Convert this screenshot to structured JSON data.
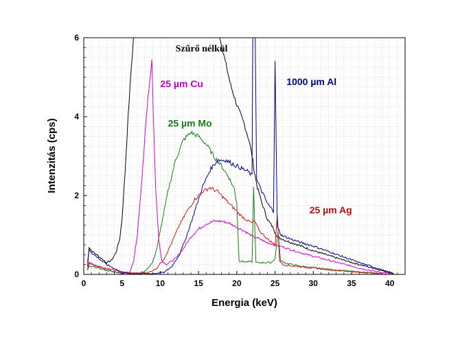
{
  "chart_data": {
    "type": "line",
    "xlabel": "Energia (keV)",
    "ylabel": "Intenzitás (cps)",
    "xlim": [
      0,
      42
    ],
    "ylim": [
      0,
      6
    ],
    "xticks": [
      0,
      5,
      10,
      15,
      20,
      25,
      30,
      35,
      40
    ],
    "yticks": [
      0,
      2,
      4,
      6
    ],
    "grid": true,
    "series": [
      {
        "name": "Szűrő nélkül",
        "color": "#000000",
        "points": [
          [
            0.5,
            0.2
          ],
          [
            0.7,
            0.7
          ],
          [
            1.0,
            0.6
          ],
          [
            2.0,
            0.45
          ],
          [
            3.0,
            0.3
          ],
          [
            3.6,
            0.35
          ],
          [
            4.2,
            0.55
          ],
          [
            4.7,
            0.9
          ],
          [
            5.0,
            1.4
          ],
          [
            5.4,
            2.6
          ],
          [
            5.8,
            4.0
          ],
          [
            6.2,
            5.2
          ],
          [
            6.5,
            6.0
          ],
          [
            6.6,
            6.3
          ]
        ],
        "points2": [
          [
            17.5,
            6.3
          ],
          [
            17.8,
            6.0
          ],
          [
            18.5,
            5.4
          ],
          [
            19.2,
            4.8
          ],
          [
            20.0,
            4.3
          ],
          [
            21.0,
            3.8
          ],
          [
            21.6,
            3.4
          ],
          [
            22.0,
            3.0
          ],
          [
            22.3,
            2.6
          ],
          [
            22.7,
            2.2
          ],
          [
            23.3,
            1.8
          ],
          [
            24.0,
            1.4
          ],
          [
            24.7,
            1.2
          ],
          [
            25.3,
            0.95
          ],
          [
            26.5,
            0.85
          ],
          [
            28.0,
            0.75
          ],
          [
            30.0,
            0.6
          ],
          [
            32.0,
            0.48
          ],
          [
            34.0,
            0.36
          ],
          [
            36.0,
            0.25
          ],
          [
            38.0,
            0.15
          ],
          [
            39.5,
            0.07
          ],
          [
            40.5,
            0.02
          ]
        ]
      },
      {
        "name": "25 µm Cu",
        "color": "#d400d4",
        "points": [
          [
            0.5,
            0.15
          ],
          [
            0.7,
            0.3
          ],
          [
            1.0,
            0.25
          ],
          [
            2.0,
            0.2
          ],
          [
            3.0,
            0.12
          ],
          [
            4.0,
            0.06
          ],
          [
            5.0,
            0.03
          ],
          [
            6.0,
            0.05
          ],
          [
            6.5,
            0.3
          ],
          [
            7.0,
            1.0
          ],
          [
            7.5,
            2.2
          ],
          [
            8.0,
            3.5
          ],
          [
            8.4,
            4.5
          ],
          [
            8.9,
            5.45
          ],
          [
            9.1,
            4.0
          ],
          [
            9.4,
            2.2
          ],
          [
            9.8,
            0.9
          ],
          [
            10.2,
            0.35
          ],
          [
            10.8,
            0.25
          ],
          [
            12.0,
            0.4
          ],
          [
            13.0,
            0.65
          ],
          [
            14.0,
            0.95
          ],
          [
            15.0,
            1.15
          ],
          [
            16.0,
            1.28
          ],
          [
            17.0,
            1.35
          ],
          [
            18.0,
            1.35
          ],
          [
            19.0,
            1.3
          ],
          [
            20.0,
            1.2
          ],
          [
            21.0,
            1.1
          ],
          [
            21.8,
            1.0
          ],
          [
            22.2,
            0.95
          ],
          [
            23.0,
            0.9
          ],
          [
            24.0,
            0.8
          ],
          [
            25.0,
            0.75
          ],
          [
            26.0,
            0.7
          ],
          [
            27.0,
            0.63
          ],
          [
            28.0,
            0.57
          ],
          [
            30.0,
            0.46
          ],
          [
            32.0,
            0.36
          ],
          [
            34.0,
            0.26
          ],
          [
            36.0,
            0.16
          ],
          [
            38.0,
            0.08
          ],
          [
            40.0,
            0.02
          ]
        ]
      },
      {
        "name": "25 µm Mo",
        "color": "#1a7a1a",
        "points": [
          [
            0.5,
            0.12
          ],
          [
            0.7,
            0.2
          ],
          [
            1.5,
            0.18
          ],
          [
            3.0,
            0.1
          ],
          [
            5.0,
            0.03
          ],
          [
            7.0,
            0.02
          ],
          [
            8.0,
            0.08
          ],
          [
            9.0,
            0.3
          ],
          [
            9.6,
            0.7
          ],
          [
            10.2,
            1.3
          ],
          [
            11.0,
            2.1
          ],
          [
            12.0,
            2.9
          ],
          [
            13.0,
            3.4
          ],
          [
            14.0,
            3.6
          ],
          [
            15.0,
            3.5
          ],
          [
            16.0,
            3.3
          ],
          [
            17.0,
            3.0
          ],
          [
            18.0,
            2.75
          ],
          [
            19.0,
            2.45
          ],
          [
            19.7,
            2.15
          ],
          [
            20.0,
            1.8
          ],
          [
            20.3,
            0.35
          ],
          [
            21.0,
            0.32
          ],
          [
            22.0,
            0.32
          ],
          [
            22.2,
            2.2
          ],
          [
            22.5,
            0.3
          ],
          [
            23.5,
            0.3
          ],
          [
            24.5,
            0.3
          ],
          [
            25.0,
            0.4
          ],
          [
            25.4,
            1.1
          ],
          [
            25.7,
            0.35
          ],
          [
            26.5,
            0.28
          ],
          [
            28.0,
            0.22
          ],
          [
            30.0,
            0.17
          ],
          [
            33.0,
            0.11
          ],
          [
            36.0,
            0.06
          ],
          [
            39.0,
            0.02
          ]
        ]
      },
      {
        "name": "25 µm Ag",
        "color": "#cc1a1a",
        "points": [
          [
            0.5,
            0.12
          ],
          [
            0.7,
            0.3
          ],
          [
            1.5,
            0.22
          ],
          [
            3.0,
            0.15
          ],
          [
            5.0,
            0.06
          ],
          [
            7.0,
            0.03
          ],
          [
            8.5,
            0.05
          ],
          [
            9.5,
            0.15
          ],
          [
            10.5,
            0.4
          ],
          [
            11.5,
            0.8
          ],
          [
            12.5,
            1.25
          ],
          [
            13.5,
            1.6
          ],
          [
            14.5,
            1.9
          ],
          [
            15.5,
            2.1
          ],
          [
            16.5,
            2.2
          ],
          [
            17.5,
            2.1
          ],
          [
            18.5,
            1.9
          ],
          [
            19.5,
            1.7
          ],
          [
            20.5,
            1.5
          ],
          [
            21.5,
            1.35
          ],
          [
            22.0,
            1.3
          ],
          [
            22.3,
            1.35
          ],
          [
            23.0,
            1.1
          ],
          [
            24.0,
            0.9
          ],
          [
            25.0,
            0.75
          ],
          [
            25.3,
            1.5
          ],
          [
            25.6,
            0.35
          ],
          [
            26.0,
            0.25
          ],
          [
            27.0,
            0.22
          ],
          [
            28.0,
            0.2
          ],
          [
            30.0,
            0.16
          ],
          [
            32.0,
            0.12
          ],
          [
            35.0,
            0.07
          ],
          [
            38.0,
            0.03
          ],
          [
            40.0,
            0.01
          ]
        ]
      },
      {
        "name": "1000 µm Al",
        "color": "#00008b",
        "points": [
          [
            0.5,
            0.3
          ],
          [
            0.7,
            0.65
          ],
          [
            1.0,
            0.55
          ],
          [
            2.0,
            0.4
          ],
          [
            3.0,
            0.25
          ],
          [
            4.0,
            0.15
          ],
          [
            5.0,
            0.05
          ],
          [
            6.0,
            0.02
          ],
          [
            9.0,
            0.02
          ],
          [
            10.5,
            0.05
          ],
          [
            11.5,
            0.2
          ],
          [
            12.5,
            0.5
          ],
          [
            13.5,
            1.0
          ],
          [
            14.5,
            1.6
          ],
          [
            15.5,
            2.2
          ],
          [
            16.5,
            2.65
          ],
          [
            17.5,
            2.9
          ],
          [
            18.5,
            2.9
          ],
          [
            19.5,
            2.8
          ],
          [
            20.5,
            2.7
          ],
          [
            21.5,
            2.6
          ],
          [
            22.0,
            2.5
          ],
          [
            22.1,
            6.3
          ],
          [
            22.4,
            6.3
          ],
          [
            22.6,
            2.4
          ],
          [
            23.3,
            2.1
          ],
          [
            24.0,
            1.8
          ],
          [
            24.8,
            1.6
          ],
          [
            25.0,
            5.45
          ],
          [
            25.3,
            1.2
          ],
          [
            25.8,
            1.0
          ],
          [
            27.0,
            0.9
          ],
          [
            28.5,
            0.8
          ],
          [
            30.0,
            0.72
          ],
          [
            32.0,
            0.58
          ],
          [
            34.0,
            0.44
          ],
          [
            36.0,
            0.3
          ],
          [
            38.0,
            0.18
          ],
          [
            39.5,
            0.08
          ],
          [
            40.5,
            0.02
          ]
        ]
      }
    ],
    "annotations": [
      {
        "text": "Szűrő nélkül",
        "x": 12.0,
        "y": 5.65,
        "color": "#000000",
        "font": "serif"
      },
      {
        "text": "25 µm Cu",
        "x": 10.0,
        "y": 4.75,
        "color": "#c000c0",
        "font": "sans"
      },
      {
        "text": "25 µm Mo",
        "x": 11.0,
        "y": 3.75,
        "color": "#1a7a1a",
        "font": "sans"
      },
      {
        "text": "1000 µm Al",
        "x": 26.5,
        "y": 4.8,
        "color": "#000080",
        "font": "sans"
      },
      {
        "text": "25 µm Ag",
        "x": 29.5,
        "y": 1.55,
        "color": "#b01010",
        "font": "sans"
      }
    ]
  }
}
